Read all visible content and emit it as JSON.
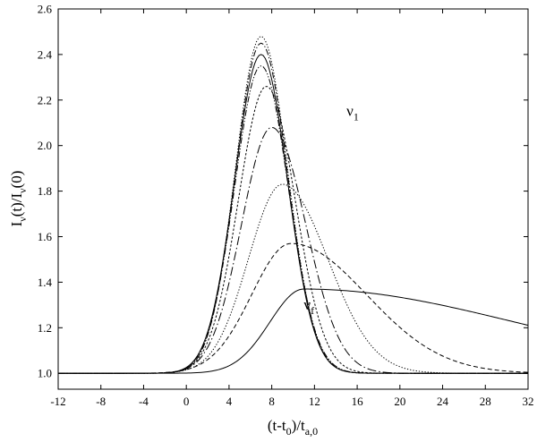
{
  "chart_data": {
    "type": "line",
    "xlabel": {
      "base": "(t-t",
      "sub1": "0",
      "mid": ")/t",
      "sub2": "a,0"
    },
    "ylabel": {
      "p1": "I",
      "s1": "ν",
      "p2": "(t)/I",
      "s2": "ν",
      "p3": "(0)"
    },
    "xlim": [
      -12,
      32
    ],
    "ylim": [
      0.93,
      2.6
    ],
    "xticks": [
      -12,
      -8,
      -4,
      0,
      4,
      8,
      12,
      16,
      20,
      24,
      28,
      32
    ],
    "xtick_labels": [
      "-12",
      "-8",
      "-4",
      "0",
      "4",
      "8",
      "12",
      "16",
      "20",
      "24",
      "28",
      "32"
    ],
    "yticks": [
      1.0,
      1.2,
      1.4,
      1.6,
      1.8,
      2.0,
      2.2,
      2.4,
      2.6
    ],
    "ytick_labels": [
      "1.0",
      "1.2",
      "1.4",
      "1.6",
      "1.8",
      "2.0",
      "2.2",
      "2.4",
      "2.6"
    ],
    "grid": false,
    "annotations": [
      {
        "base": "ν",
        "sub": "1",
        "x": 15.0,
        "y": 2.13
      },
      {
        "base": "ν",
        "sub": "f",
        "x": 11.0,
        "y": 1.28
      }
    ],
    "series": [
      {
        "style": "dot",
        "peak_x": 7.0,
        "peak_y": 2.48,
        "rise": 3.4,
        "fall": 3.5,
        "tail_y": 1.0,
        "x": [
          -12,
          -8,
          -4,
          0,
          2,
          4,
          6,
          7,
          8,
          10,
          12,
          14,
          16,
          18,
          20,
          24,
          28,
          32
        ],
        "y": [
          1.01,
          1.03,
          1.12,
          1.53,
          1.92,
          2.27,
          2.46,
          2.48,
          2.46,
          2.25,
          1.89,
          1.5,
          1.22,
          1.08,
          1.03,
          1.0,
          1.0,
          1.0
        ]
      },
      {
        "style": "dashdot",
        "peak_x": 7.0,
        "peak_y": 2.45,
        "rise": 3.4,
        "fall": 3.5,
        "tail_y": 1.0,
        "x": [
          -12,
          -8,
          -4,
          0,
          2,
          4,
          6,
          7,
          8,
          10,
          12,
          14,
          16,
          18,
          20,
          24,
          28,
          32
        ],
        "y": [
          1.01,
          1.03,
          1.12,
          1.52,
          1.9,
          2.24,
          2.43,
          2.45,
          2.43,
          2.23,
          1.87,
          1.49,
          1.22,
          1.08,
          1.03,
          1.0,
          1.0,
          1.0
        ]
      },
      {
        "style": "solid",
        "peak_x": 7.0,
        "peak_y": 2.4,
        "rise": 3.5,
        "fall": 3.5,
        "tail_y": 1.0,
        "x": [
          -12,
          -8,
          -4,
          0,
          2,
          4,
          6,
          7,
          8,
          10,
          12,
          14,
          16,
          18,
          20,
          24,
          28,
          32
        ],
        "y": [
          1.01,
          1.03,
          1.11,
          1.49,
          1.86,
          2.19,
          2.38,
          2.4,
          2.38,
          2.19,
          1.84,
          1.48,
          1.22,
          1.08,
          1.03,
          1.0,
          1.0,
          1.0
        ]
      },
      {
        "style": "dashdotdot",
        "peak_x": 7.0,
        "peak_y": 2.35,
        "rise": 3.5,
        "fall": 3.6,
        "tail_y": 1.0,
        "x": [
          -12,
          -8,
          -4,
          0,
          2,
          4,
          6,
          7,
          8,
          10,
          12,
          14,
          16,
          18,
          20,
          24,
          28,
          32
        ],
        "y": [
          1.01,
          1.03,
          1.11,
          1.47,
          1.82,
          2.15,
          2.33,
          2.35,
          2.33,
          2.16,
          1.83,
          1.48,
          1.23,
          1.09,
          1.03,
          1.0,
          1.0,
          1.0
        ]
      },
      {
        "style": "shortdash",
        "peak_x": 7.5,
        "peak_y": 2.26,
        "rise": 3.7,
        "fall": 3.8,
        "tail_y": 1.0,
        "x": [
          -12,
          -8,
          -4,
          0,
          2,
          4,
          6,
          7.5,
          8,
          10,
          12,
          14,
          16,
          18,
          20,
          24,
          28,
          32
        ],
        "y": [
          1.01,
          1.03,
          1.1,
          1.4,
          1.71,
          2.0,
          2.2,
          2.26,
          2.25,
          2.12,
          1.84,
          1.52,
          1.26,
          1.11,
          1.04,
          1.0,
          1.0,
          1.0
        ]
      },
      {
        "style": "longdashdot",
        "peak_x": 8.0,
        "peak_y": 2.08,
        "rise": 4.0,
        "fall": 4.5,
        "tail_y": 1.0,
        "x": [
          -12,
          -8,
          -4,
          0,
          2,
          4,
          6,
          8,
          10,
          12,
          14,
          16,
          18,
          20,
          24,
          28,
          32
        ],
        "y": [
          1.01,
          1.03,
          1.09,
          1.32,
          1.55,
          1.78,
          1.97,
          2.08,
          2.02,
          1.85,
          1.62,
          1.41,
          1.25,
          1.14,
          1.04,
          1.01,
          1.0
        ]
      },
      {
        "style": "dot",
        "peak_x": 9.0,
        "peak_y": 1.83,
        "rise": 4.5,
        "fall": 6.0,
        "tail_y": 1.0,
        "x": [
          -12,
          -8,
          -4,
          0,
          2,
          4,
          6,
          8,
          9,
          10,
          12,
          14,
          16,
          18,
          20,
          24,
          28,
          32
        ],
        "y": [
          1.01,
          1.02,
          1.07,
          1.23,
          1.37,
          1.53,
          1.68,
          1.8,
          1.83,
          1.82,
          1.76,
          1.66,
          1.53,
          1.41,
          1.31,
          1.16,
          1.07,
          1.03
        ]
      },
      {
        "style": "dash",
        "peak_x": 9.8,
        "peak_y": 1.57,
        "rise": 5.2,
        "fall": 10.0,
        "tail_y": 1.0,
        "x": [
          -12,
          -8,
          -4,
          0,
          2,
          4,
          6,
          8,
          10,
          12,
          14,
          16,
          18,
          20,
          24,
          28,
          32
        ],
        "y": [
          1.01,
          1.02,
          1.05,
          1.15,
          1.24,
          1.34,
          1.44,
          1.53,
          1.57,
          1.56,
          1.54,
          1.5,
          1.44,
          1.39,
          1.28,
          1.18,
          1.1
        ]
      },
      {
        "style": "solid",
        "peak_x": 11.0,
        "peak_y": 1.37,
        "rise": 4.5,
        "fall": 28.0,
        "tail_y": 1.0,
        "x": [
          -12,
          -8,
          -4,
          0,
          2,
          4,
          6,
          8,
          10,
          11,
          12,
          14,
          16,
          18,
          20,
          24,
          28,
          32
        ],
        "y": [
          1.01,
          1.01,
          1.02,
          1.05,
          1.13,
          1.22,
          1.3,
          1.35,
          1.37,
          1.37,
          1.36,
          1.35,
          1.34,
          1.32,
          1.3,
          1.27,
          1.24,
          1.2
        ]
      }
    ]
  }
}
